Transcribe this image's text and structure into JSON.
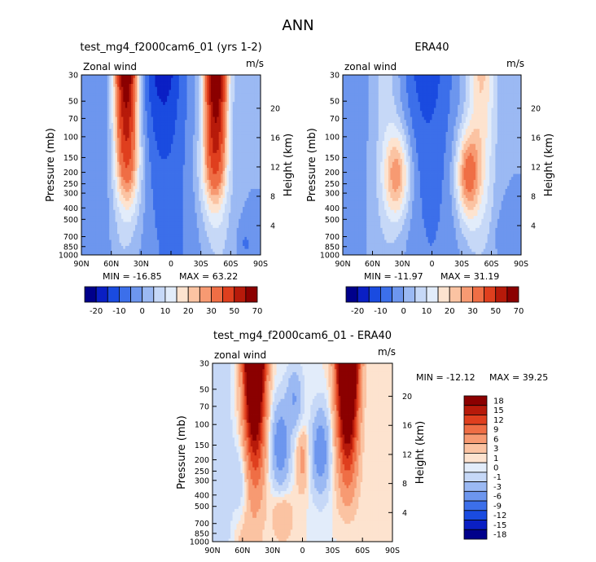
{
  "main_title": "ANN",
  "palette_main": [
    "#00008b",
    "#0a1fc4",
    "#1a4be0",
    "#3c6fea",
    "#6d96ee",
    "#9bb9f3",
    "#c6d8f7",
    "#e2ecfa",
    "#fde3cf",
    "#fbc3a2",
    "#f79a72",
    "#ef6e45",
    "#df3f1e",
    "#b71a0a",
    "#8b0000"
  ],
  "palette_diff": [
    "#00008b",
    "#0a1fc4",
    "#1a4be0",
    "#3c6fea",
    "#6d96ee",
    "#9bb9f3",
    "#c6d8f7",
    "#e2ecfa",
    "#fde3cf",
    "#fbc3a2",
    "#f79a72",
    "#ef6e45",
    "#df3f1e",
    "#b71a0a",
    "#8b0000"
  ],
  "lat_ticks": [
    "90N",
    "60N",
    "30N",
    "0",
    "30S",
    "60S",
    "90S"
  ],
  "p_ticks": [
    {
      "label": "30",
      "p": 30
    },
    {
      "label": "50",
      "p": 50
    },
    {
      "label": "70",
      "p": 70
    },
    {
      "label": "100",
      "p": 100
    },
    {
      "label": "150",
      "p": 150
    },
    {
      "label": "200",
      "p": 200
    },
    {
      "label": "250",
      "p": 250
    },
    {
      "label": "300",
      "p": 300
    },
    {
      "label": "400",
      "p": 400
    },
    {
      "label": "500",
      "p": 500
    },
    {
      "label": "700",
      "p": 700
    },
    {
      "label": "850",
      "p": 850
    },
    {
      "label": "1000",
      "p": 1000
    }
  ],
  "h_ticks": [
    {
      "label": "4",
      "km": 4
    },
    {
      "label": "8",
      "km": 8
    },
    {
      "label": "12",
      "km": 12
    },
    {
      "label": "16",
      "km": 16
    },
    {
      "label": "20",
      "km": 20
    }
  ],
  "ylabel": "Pressure (mb)",
  "y2label": "Height (km)",
  "panels": [
    {
      "id": "model",
      "title": "test_mg4_f2000cam6_01 (yrs 1-2)",
      "left_label": "Zonal wind",
      "right_label": "m/s",
      "min_text": "MIN = -16.85",
      "max_text": "MAX = 63.22"
    },
    {
      "id": "obs",
      "title": "ERA40",
      "left_label": "zonal wind",
      "right_label": "m/s",
      "min_text": "MIN = -11.97",
      "max_text": "MAX = 31.19"
    },
    {
      "id": "diff",
      "title": "test_mg4_f2000cam6_01 - ERA40",
      "left_label": "zonal wind",
      "right_label": "m/s",
      "min_text": "MIN = -12.12",
      "max_text": "MAX = 39.25"
    }
  ],
  "colorbar_main_labels": [
    "-20",
    "-10",
    "0",
    "10",
    "20",
    "30",
    "50",
    "70"
  ],
  "colorbar_diff_labels": [
    "18",
    "15",
    "12",
    "9",
    "6",
    "3",
    "1",
    "0",
    "-1",
    "-3",
    "-6",
    "-9",
    "-12",
    "-15",
    "-18"
  ],
  "chart_data": [
    {
      "type": "heatmap",
      "title": "test_mg4_f2000cam6_01 (yrs 1-2)",
      "variable": "Zonal wind",
      "units": "m/s",
      "xlabel": "",
      "ylabel": "Pressure (mb)",
      "y2label": "Height (km)",
      "x_ticks": [
        "90N",
        "60N",
        "30N",
        "0",
        "30S",
        "60S",
        "90S"
      ],
      "ylim": [
        1000,
        30
      ],
      "log_scale": true,
      "levels": [
        -20,
        -10,
        0,
        10,
        20,
        30,
        50,
        70
      ],
      "min": -16.85,
      "max": 63.22,
      "features": [
        {
          "lat": 45,
          "p": 50,
          "value": 25
        },
        {
          "lat": -45,
          "p": 50,
          "value": 30
        },
        {
          "lat": 5,
          "p": 40,
          "value": -15
        }
      ]
    },
    {
      "type": "heatmap",
      "title": "ERA40",
      "variable": "zonal wind",
      "units": "m/s",
      "xlabel": "",
      "ylabel": "Pressure (mb)",
      "y2label": "Height (km)",
      "x_ticks": [
        "90N",
        "60N",
        "30N",
        "0",
        "30S",
        "60S",
        "90S"
      ],
      "ylim": [
        1000,
        30
      ],
      "log_scale": true,
      "levels": [
        -20,
        -10,
        0,
        10,
        20,
        30,
        50,
        70
      ],
      "min": -11.97,
      "max": 31.19,
      "features": [
        {
          "lat": 35,
          "p": 200,
          "value": 20
        },
        {
          "lat": -35,
          "p": 200,
          "value": 25
        },
        {
          "lat": 5,
          "p": 40,
          "value": -10
        }
      ]
    },
    {
      "type": "heatmap",
      "title": "test_mg4_f2000cam6_01 - ERA40",
      "variable": "zonal wind",
      "units": "m/s",
      "xlabel": "",
      "ylabel": "Pressure (mb)",
      "y2label": "Height (km)",
      "x_ticks": [
        "90N",
        "60N",
        "30N",
        "0",
        "30S",
        "60S",
        "90S"
      ],
      "ylim": [
        1000,
        30
      ],
      "log_scale": true,
      "levels": [
        -18,
        -15,
        -12,
        -9,
        -6,
        -3,
        -1,
        0,
        1,
        3,
        6,
        9,
        12,
        15,
        18
      ],
      "min": -12.12,
      "max": 39.25,
      "features": [
        {
          "lat": 48,
          "p": 40,
          "value": 20
        },
        {
          "lat": -45,
          "p": 40,
          "value": 22
        },
        {
          "lat": 25,
          "p": 150,
          "value": -8
        },
        {
          "lat": -18,
          "p": 150,
          "value": -8
        }
      ]
    }
  ]
}
